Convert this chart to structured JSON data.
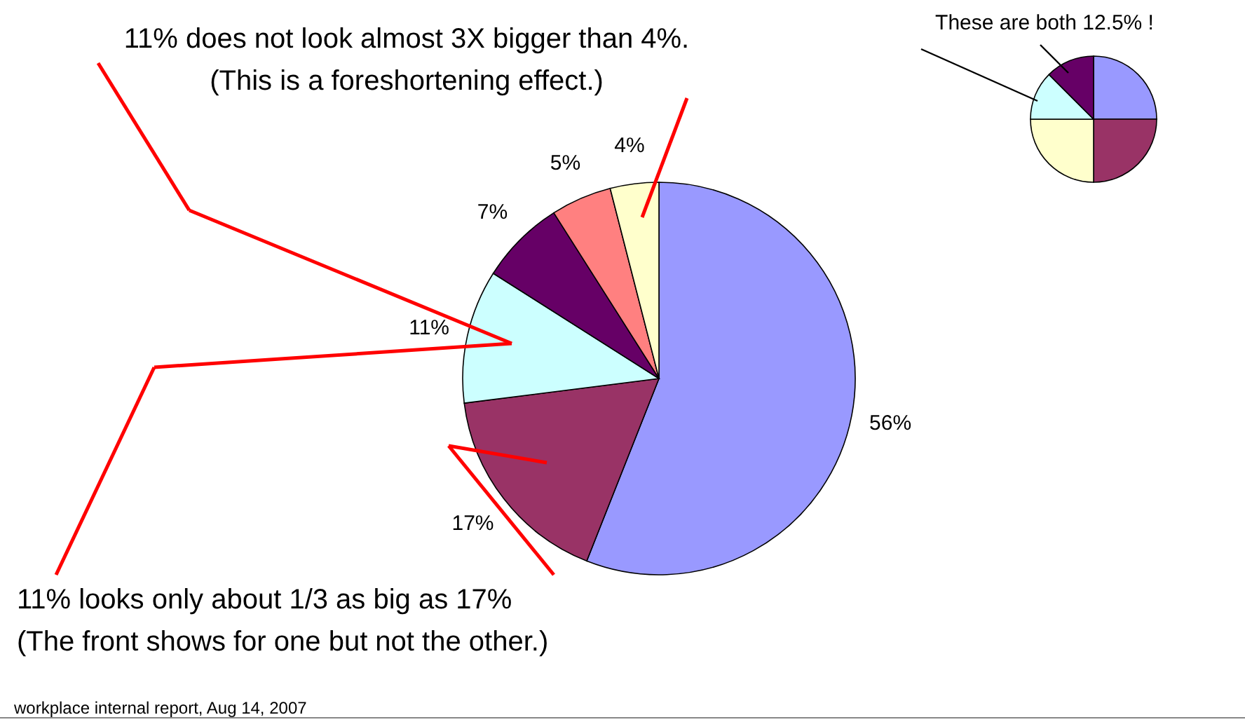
{
  "chart_data": [
    {
      "type": "pie",
      "categories": [
        null,
        null,
        null,
        null,
        null,
        null
      ],
      "values": [
        56,
        17,
        11,
        7,
        5,
        4
      ],
      "colors": [
        "#9999ff",
        "#993366",
        "#ccffff",
        "#660066",
        "#ff8080",
        "#ffffcc"
      ],
      "value_labels": [
        "56%",
        "17%",
        "11%",
        "7%",
        "5%",
        "4%"
      ],
      "annotations": [
        "11% does not look almost 3X bigger than 4%.",
        "(This is a foreshortening effect.)",
        "11% looks only about 1/3 as big as 17%",
        "(The front shows for one but not the other.)",
        "workplace internal report, Aug 14, 2007"
      ]
    },
    {
      "type": "pie",
      "categories": [
        null,
        null,
        null,
        null,
        null
      ],
      "values": [
        25,
        25,
        25,
        12.5,
        12.5
      ],
      "colors": [
        "#9999ff",
        "#993366",
        "#ffffcc",
        "#ccffff",
        "#660066"
      ],
      "annotations": [
        "These are both 12.5% !"
      ]
    }
  ]
}
